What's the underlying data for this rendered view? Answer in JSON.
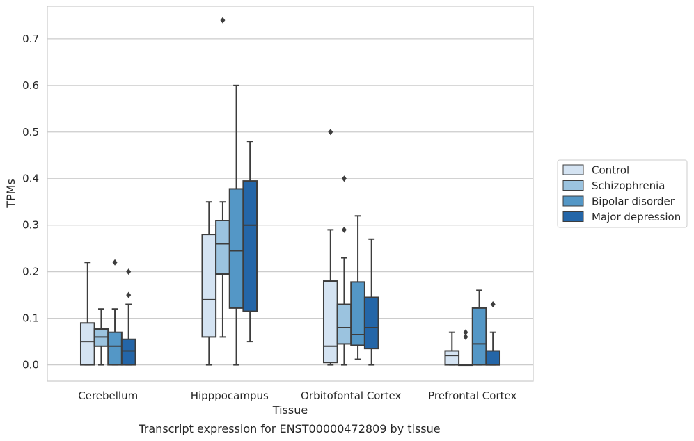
{
  "chart_data": {
    "type": "box",
    "caption": "Transcript expression for ENST00000472809 by tissue",
    "xlabel": "Tissue",
    "ylabel": "TPMs",
    "ylim": [
      -0.035,
      0.77
    ],
    "yticks": [
      "0.0",
      "0.1",
      "0.2",
      "0.3",
      "0.4",
      "0.5",
      "0.6",
      "0.7"
    ],
    "ytick_values": [
      0.0,
      0.1,
      0.2,
      0.3,
      0.4,
      0.5,
      0.6,
      0.7
    ],
    "grid": "horizontal",
    "legend_position": "right",
    "categories": [
      "Cerebellum",
      "Hipppocampus",
      "Orbitofontal Cortex",
      "Prefrontal Cortex"
    ],
    "series": [
      {
        "name": "Control",
        "color": "#d4e3f2",
        "boxes": [
          {
            "whislo": 0.0,
            "q1": 0.0,
            "med": 0.05,
            "q3": 0.09,
            "whishi": 0.22,
            "fliers": []
          },
          {
            "whislo": 0.0,
            "q1": 0.06,
            "med": 0.14,
            "q3": 0.28,
            "whishi": 0.35,
            "fliers": []
          },
          {
            "whislo": 0.0,
            "q1": 0.005,
            "med": 0.04,
            "q3": 0.18,
            "whishi": 0.29,
            "fliers": [
              0.5
            ]
          },
          {
            "whislo": 0.0,
            "q1": 0.0,
            "med": 0.02,
            "q3": 0.03,
            "whishi": 0.07,
            "fliers": []
          }
        ]
      },
      {
        "name": "Schizophrenia",
        "color": "#9bc3df",
        "boxes": [
          {
            "whislo": 0.0,
            "q1": 0.04,
            "med": 0.06,
            "q3": 0.077,
            "whishi": 0.12,
            "fliers": []
          },
          {
            "whislo": 0.06,
            "q1": 0.195,
            "med": 0.26,
            "q3": 0.31,
            "whishi": 0.35,
            "fliers": [
              0.74
            ]
          },
          {
            "whislo": 0.0,
            "q1": 0.045,
            "med": 0.08,
            "q3": 0.13,
            "whishi": 0.23,
            "fliers": [
              0.29,
              0.4
            ]
          },
          {
            "whislo": 0.0,
            "q1": 0.0,
            "med": 0.0,
            "q3": 0.0,
            "whishi": 0.0,
            "fliers": [
              0.06,
              0.07
            ]
          }
        ]
      },
      {
        "name": "Bipolar disorder",
        "color": "#5497c6",
        "boxes": [
          {
            "whislo": 0.0,
            "q1": 0.0,
            "med": 0.04,
            "q3": 0.07,
            "whishi": 0.12,
            "fliers": [
              0.22
            ]
          },
          {
            "whislo": 0.0,
            "q1": 0.122,
            "med": 0.245,
            "q3": 0.378,
            "whishi": 0.6,
            "fliers": []
          },
          {
            "whislo": 0.012,
            "q1": 0.042,
            "med": 0.065,
            "q3": 0.178,
            "whishi": 0.32,
            "fliers": []
          },
          {
            "whislo": 0.0,
            "q1": 0.0,
            "med": 0.045,
            "q3": 0.122,
            "whishi": 0.16,
            "fliers": []
          }
        ]
      },
      {
        "name": "Major depression",
        "color": "#2466a8",
        "boxes": [
          {
            "whislo": 0.0,
            "q1": 0.0,
            "med": 0.03,
            "q3": 0.055,
            "whishi": 0.13,
            "fliers": [
              0.15,
              0.2
            ]
          },
          {
            "whislo": 0.05,
            "q1": 0.115,
            "med": 0.3,
            "q3": 0.395,
            "whishi": 0.48,
            "fliers": []
          },
          {
            "whislo": 0.0,
            "q1": 0.035,
            "med": 0.08,
            "q3": 0.145,
            "whishi": 0.27,
            "fliers": []
          },
          {
            "whislo": 0.0,
            "q1": 0.0,
            "med": 0.0,
            "q3": 0.03,
            "whishi": 0.07,
            "fliers": [
              0.13
            ]
          }
        ]
      }
    ]
  }
}
